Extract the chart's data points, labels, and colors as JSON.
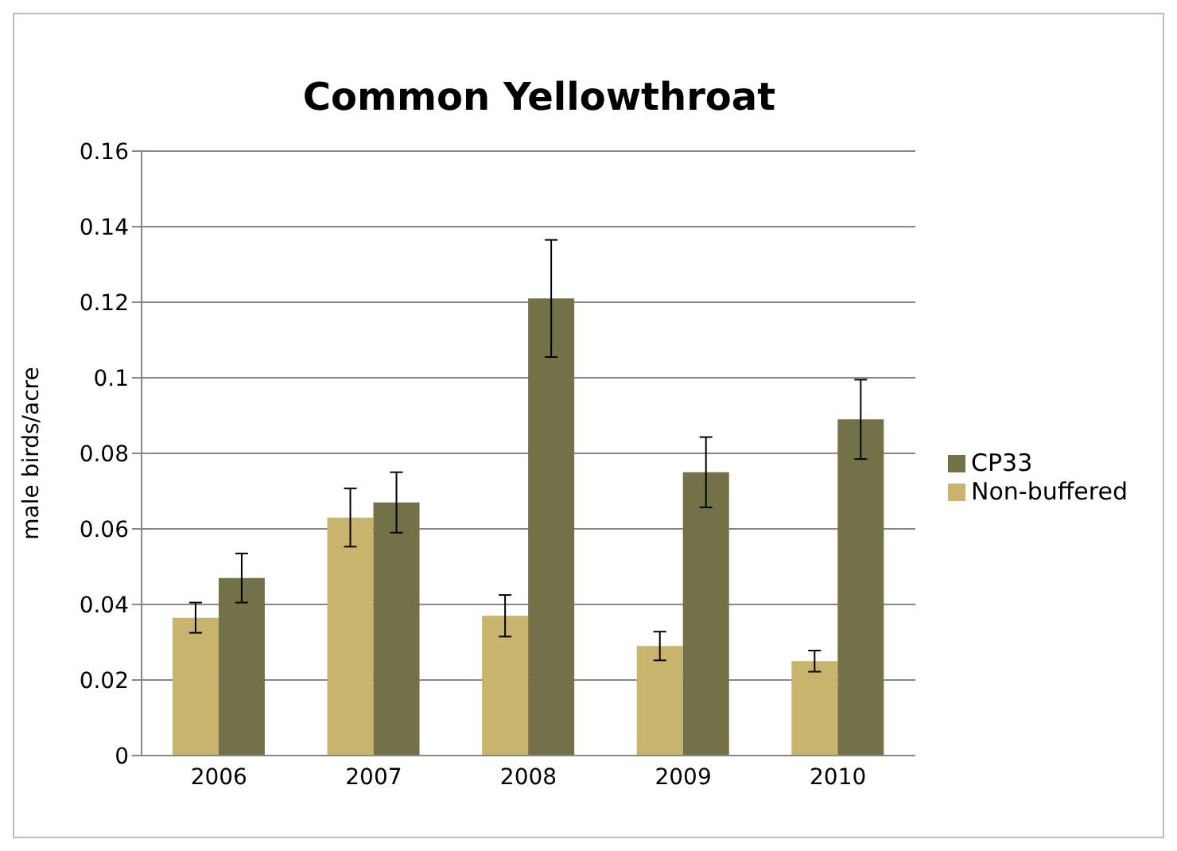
{
  "chart_data": {
    "type": "bar",
    "title": "Common Yellowthroat",
    "ylabel": "male birds/acre",
    "categories": [
      "2006",
      "2007",
      "2008",
      "2009",
      "2010"
    ],
    "series": [
      {
        "name": "Non-buffered",
        "color": "#c9b46e",
        "values": [
          0.0365,
          0.063,
          0.037,
          0.029,
          0.025
        ],
        "errors": [
          0.004,
          0.0077,
          0.0055,
          0.0038,
          0.0028
        ]
      },
      {
        "name": "CP33",
        "color": "#737148",
        "values": [
          0.047,
          0.067,
          0.121,
          0.075,
          0.089
        ],
        "errors": [
          0.0065,
          0.008,
          0.0155,
          0.0093,
          0.0105
        ]
      }
    ],
    "ylim": [
      0,
      0.16
    ],
    "yticks": [
      0,
      0.02,
      0.04,
      0.06,
      0.08,
      0.1,
      0.12,
      0.14,
      0.16
    ],
    "grid": "y",
    "legend": "right"
  }
}
